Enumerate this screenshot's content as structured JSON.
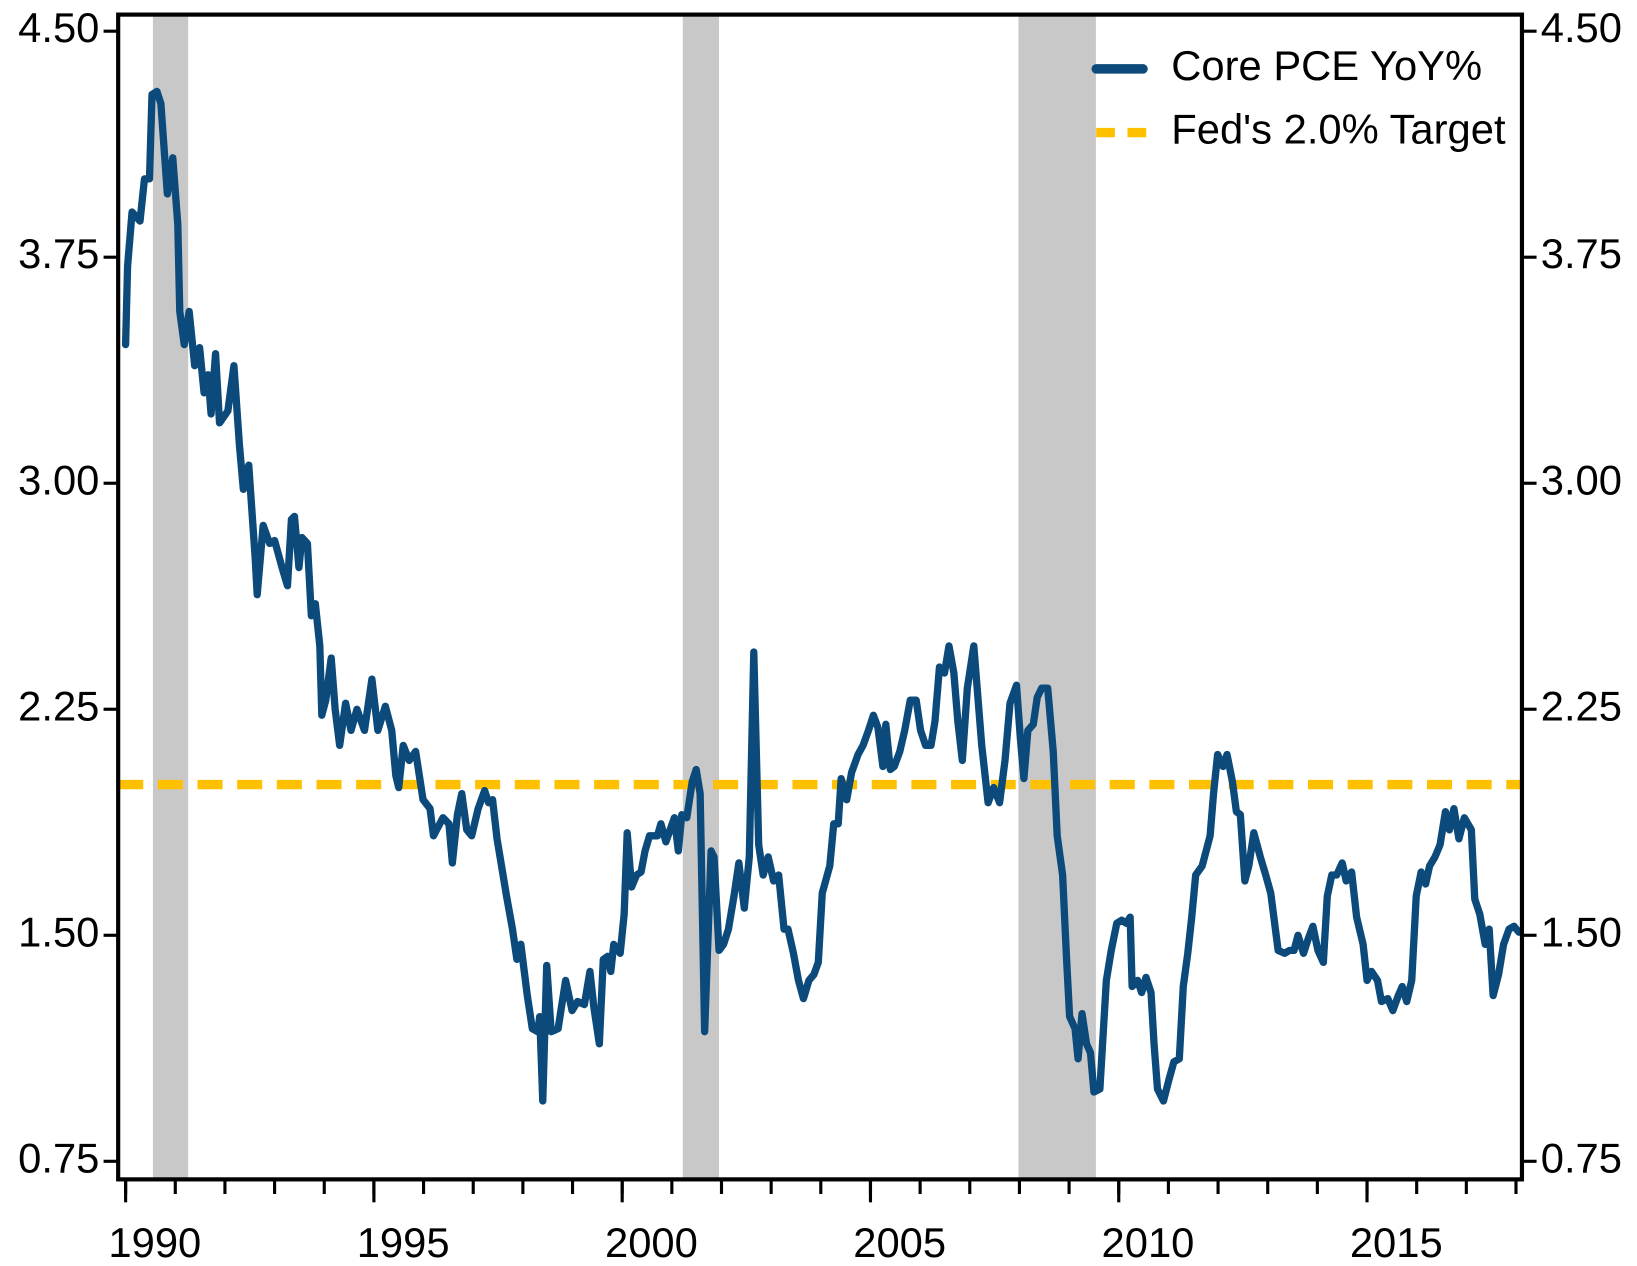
{
  "chart_data": {
    "type": "line",
    "series": [
      {
        "name": "Core PCE YoY%",
        "color": "#0b4a7a",
        "x": [
          1990.0,
          1990.04,
          1990.13,
          1990.29,
          1990.38,
          1990.48,
          1990.53,
          1990.63,
          1990.71,
          1990.84,
          1990.95,
          1991.05,
          1991.09,
          1991.18,
          1991.28,
          1991.39,
          1991.49,
          1991.58,
          1991.66,
          1991.72,
          1991.81,
          1991.89,
          1992.06,
          1992.18,
          1992.29,
          1992.37,
          1992.48,
          1992.61,
          1992.65,
          1992.77,
          1992.9,
          1993.0,
          1993.15,
          1993.26,
          1993.34,
          1993.4,
          1993.49,
          1993.55,
          1993.66,
          1993.74,
          1993.82,
          1993.91,
          1993.95,
          1994.03,
          1994.14,
          1994.22,
          1994.31,
          1994.43,
          1994.54,
          1994.66,
          1994.81,
          1994.96,
          1995.08,
          1995.23,
          1995.36,
          1995.44,
          1995.5,
          1995.59,
          1995.71,
          1995.84,
          1995.99,
          1996.13,
          1996.2,
          1996.39,
          1996.51,
          1996.58,
          1996.68,
          1996.77,
          1996.87,
          1996.97,
          1997.1,
          1997.23,
          1997.31,
          1997.39,
          1997.48,
          1997.67,
          1997.79,
          1997.88,
          1997.96,
          1998.09,
          1998.19,
          1998.3,
          1998.34,
          1998.4,
          1998.48,
          1998.57,
          1998.71,
          1998.86,
          1998.99,
          1999.1,
          1999.24,
          1999.35,
          1999.43,
          1999.54,
          1999.62,
          1999.71,
          1999.77,
          1999.83,
          1999.96,
          2000.04,
          2000.1,
          2000.19,
          2000.29,
          2000.38,
          2000.46,
          2000.55,
          2000.71,
          2000.78,
          2000.88,
          2001.05,
          2001.13,
          2001.2,
          2001.3,
          2001.41,
          2001.49,
          2001.57,
          2001.66,
          2001.79,
          2001.85,
          2001.95,
          2002.04,
          2002.14,
          2002.25,
          2002.35,
          2002.46,
          2002.56,
          2002.65,
          2002.75,
          2002.84,
          2002.94,
          2003.05,
          2003.15,
          2003.26,
          2003.34,
          2003.45,
          2003.55,
          2003.65,
          2003.76,
          2003.86,
          2003.95,
          2004.03,
          2004.18,
          2004.26,
          2004.35,
          2004.41,
          2004.52,
          2004.62,
          2004.75,
          2004.85,
          2004.96,
          2005.06,
          2005.15,
          2005.25,
          2005.31,
          2005.4,
          2005.48,
          2005.59,
          2005.69,
          2005.8,
          2005.92,
          2006.01,
          2006.11,
          2006.22,
          2006.3,
          2006.39,
          2006.49,
          2006.58,
          2006.68,
          2006.76,
          2006.85,
          2006.95,
          2007.08,
          2007.24,
          2007.37,
          2007.48,
          2007.6,
          2007.71,
          2007.81,
          2007.94,
          2008.02,
          2008.09,
          2008.17,
          2008.28,
          2008.36,
          2008.45,
          2008.57,
          2008.68,
          2008.76,
          2008.87,
          2008.95,
          2009.01,
          2009.12,
          2009.18,
          2009.26,
          2009.35,
          2009.43,
          2009.5,
          2009.62,
          2009.75,
          2009.85,
          2009.96,
          2010.06,
          2010.15,
          2010.23,
          2010.27,
          2010.38,
          2010.46,
          2010.55,
          2010.65,
          2010.71,
          2010.78,
          2010.9,
          2011.01,
          2011.11,
          2011.22,
          2011.3,
          2011.39,
          2011.47,
          2011.55,
          2011.68,
          2011.76,
          2011.84,
          2011.91,
          2011.99,
          2012.1,
          2012.18,
          2012.29,
          2012.37,
          2012.45,
          2012.54,
          2012.62,
          2012.72,
          2012.85,
          2012.96,
          2013.06,
          2013.21,
          2013.34,
          2013.44,
          2013.53,
          2013.61,
          2013.72,
          2013.82,
          2013.91,
          2014.01,
          2014.12,
          2014.2,
          2014.29,
          2014.39,
          2014.5,
          2014.58,
          2014.69,
          2014.79,
          2014.92,
          2015.0,
          2015.09,
          2015.21,
          2015.29,
          2015.42,
          2015.52,
          2015.63,
          2015.71,
          2015.8,
          2015.9,
          2015.99,
          2016.09,
          2016.18,
          2016.26,
          2016.37,
          2016.47,
          2016.58,
          2016.66,
          2016.75,
          2016.85,
          2016.96,
          2017.1,
          2017.17,
          2017.27,
          2017.38,
          2017.46,
          2017.54,
          2017.65,
          2017.75,
          2017.86,
          2017.96,
          2018.06
        ],
        "values": [
          3.46,
          3.72,
          3.9,
          3.87,
          4.01,
          4.01,
          4.29,
          4.3,
          4.26,
          3.96,
          4.08,
          3.86,
          3.57,
          3.46,
          3.57,
          3.39,
          3.45,
          3.3,
          3.36,
          3.23,
          3.43,
          3.2,
          3.24,
          3.39,
          3.13,
          2.98,
          3.06,
          2.75,
          2.63,
          2.86,
          2.8,
          2.81,
          2.72,
          2.66,
          2.88,
          2.89,
          2.72,
          2.82,
          2.8,
          2.56,
          2.6,
          2.46,
          2.23,
          2.28,
          2.42,
          2.25,
          2.13,
          2.27,
          2.18,
          2.25,
          2.18,
          2.35,
          2.18,
          2.26,
          2.18,
          2.03,
          1.99,
          2.13,
          2.08,
          2.11,
          1.95,
          1.92,
          1.83,
          1.89,
          1.87,
          1.74,
          1.9,
          1.97,
          1.85,
          1.83,
          1.92,
          1.98,
          1.94,
          1.95,
          1.82,
          1.63,
          1.52,
          1.42,
          1.47,
          1.3,
          1.19,
          1.18,
          1.23,
          0.95,
          1.4,
          1.18,
          1.19,
          1.35,
          1.25,
          1.28,
          1.27,
          1.38,
          1.26,
          1.14,
          1.42,
          1.43,
          1.38,
          1.47,
          1.44,
          1.57,
          1.84,
          1.66,
          1.7,
          1.71,
          1.78,
          1.83,
          1.83,
          1.87,
          1.81,
          1.89,
          1.78,
          1.9,
          1.89,
          2.01,
          2.05,
          1.97,
          1.18,
          1.78,
          1.76,
          1.45,
          1.47,
          1.52,
          1.63,
          1.74,
          1.59,
          1.76,
          2.44,
          1.8,
          1.7,
          1.76,
          1.68,
          1.7,
          1.52,
          1.52,
          1.44,
          1.35,
          1.29,
          1.35,
          1.37,
          1.41,
          1.64,
          1.73,
          1.87,
          1.87,
          2.02,
          1.95,
          2.04,
          2.1,
          2.13,
          2.18,
          2.23,
          2.19,
          2.06,
          2.2,
          2.05,
          2.06,
          2.11,
          2.18,
          2.28,
          2.28,
          2.18,
          2.13,
          2.13,
          2.21,
          2.39,
          2.37,
          2.46,
          2.37,
          2.21,
          2.08,
          2.32,
          2.46,
          2.13,
          1.94,
          1.99,
          1.94,
          2.08,
          2.27,
          2.33,
          2.15,
          2.02,
          2.18,
          2.2,
          2.29,
          2.32,
          2.32,
          2.11,
          1.83,
          1.7,
          1.42,
          1.23,
          1.19,
          1.09,
          1.24,
          1.14,
          1.11,
          0.98,
          0.99,
          1.35,
          1.45,
          1.54,
          1.55,
          1.54,
          1.56,
          1.33,
          1.35,
          1.31,
          1.36,
          1.31,
          1.14,
          0.99,
          0.95,
          1.02,
          1.08,
          1.09,
          1.33,
          1.44,
          1.56,
          1.7,
          1.73,
          1.78,
          1.83,
          1.97,
          2.1,
          2.06,
          2.1,
          2.01,
          1.91,
          1.9,
          1.68,
          1.73,
          1.84,
          1.76,
          1.7,
          1.64,
          1.45,
          1.44,
          1.45,
          1.45,
          1.5,
          1.44,
          1.49,
          1.53,
          1.45,
          1.41,
          1.63,
          1.7,
          1.7,
          1.74,
          1.68,
          1.71,
          1.56,
          1.47,
          1.35,
          1.38,
          1.35,
          1.28,
          1.29,
          1.25,
          1.3,
          1.33,
          1.28,
          1.35,
          1.63,
          1.71,
          1.67,
          1.73,
          1.76,
          1.8,
          1.91,
          1.85,
          1.92,
          1.82,
          1.89,
          1.85,
          1.62,
          1.57,
          1.47,
          1.52,
          1.3,
          1.37,
          1.47,
          1.52,
          1.53,
          1.51
        ]
      }
    ],
    "hlines": [
      {
        "name": "Fed's 2.0% Target",
        "color": "#ffc000",
        "value": 2.0
      }
    ],
    "shaded_ranges": [
      [
        1990.55,
        1991.26
      ],
      [
        2001.22,
        2001.95
      ],
      [
        2007.98,
        2009.54
      ]
    ],
    "shade_color": "#c8c8c8",
    "xlim": [
      1989.85,
      2018.12
    ],
    "xticks": [
      1990,
      1995,
      2000,
      2005,
      2010,
      2015
    ],
    "xminorticks": [
      1990,
      1991,
      1992,
      1993,
      1994,
      1995,
      1996,
      1997,
      1998,
      1999,
      2000,
      2001,
      2002,
      2003,
      2004,
      2005,
      2006,
      2007,
      2008,
      2009,
      2010,
      2011,
      2012,
      2013,
      2014,
      2015,
      2016,
      2017,
      2018
    ],
    "ylim": [
      0.69,
      4.555
    ],
    "yticks": [
      {
        "value": 0.75,
        "label": "0.75"
      },
      {
        "value": 1.5,
        "label": "1.50"
      },
      {
        "value": 2.25,
        "label": "2.25"
      },
      {
        "value": 3.0,
        "label": "3.00"
      },
      {
        "value": 3.75,
        "label": "3.75"
      },
      {
        "value": 4.5,
        "label": "4.50"
      }
    ],
    "y2lim": [
      0.69,
      4.555
    ],
    "y2ticks": [
      {
        "value": 0.75,
        "label": "0.75"
      },
      {
        "value": 1.5,
        "label": "1.50"
      },
      {
        "value": 2.25,
        "label": "2.25"
      },
      {
        "value": 3.0,
        "label": "3.00"
      },
      {
        "value": 3.75,
        "label": "3.75"
      },
      {
        "value": 4.5,
        "label": "4.50"
      }
    ],
    "legend": "upper right"
  }
}
